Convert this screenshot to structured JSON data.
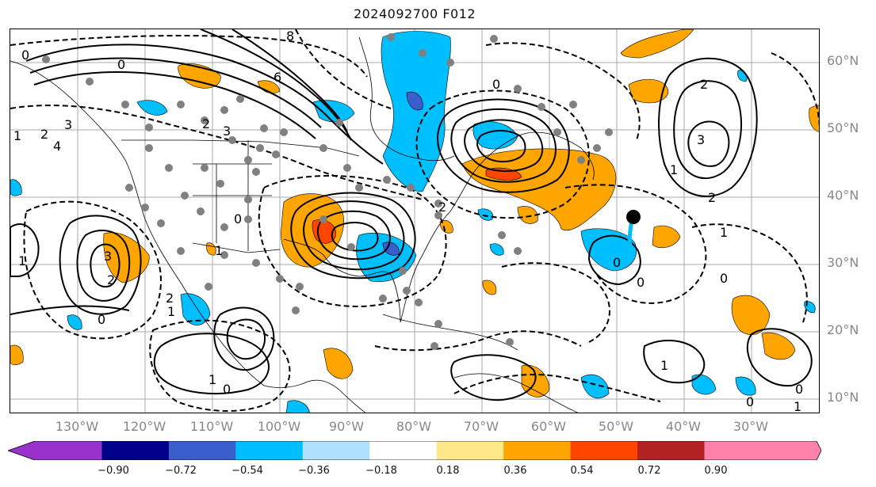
{
  "title": "2024092700 F012",
  "lat_labels": [
    "60°N",
    "50°N",
    "40°N",
    "30°N",
    "20°N",
    "10°N"
  ],
  "lon_labels": [
    "130°W",
    "120°W",
    "110°W",
    "100°W",
    "90°W",
    "80°W",
    "70°W",
    "60°W",
    "50°W",
    "40°W",
    "30°W"
  ],
  "colorbar": {
    "ticks": [
      "−0.90",
      "−0.72",
      "−0.54",
      "−0.36",
      "−0.18",
      "0.18",
      "0.36",
      "0.54",
      "0.72",
      "0.90"
    ],
    "colors": [
      "#9932cc",
      "#00008b",
      "#3a5fcd",
      "#00bfff",
      "#b0e2ff",
      "#ffffff",
      "#ffe88a",
      "#ffa500",
      "#ff4500",
      "#b22222",
      "#ff82ab"
    ]
  },
  "colors": {
    "positive_fill": "#ffa500",
    "positive_strong": "#ff4500",
    "negative_fill": "#00bfff",
    "negative_strong": "#3a5fcd",
    "grid": "#aaaaaa",
    "contour": "#000000",
    "dots": "#808080"
  },
  "contour_labels": [
    "0",
    "0",
    "1",
    "2",
    "3",
    "4",
    "6",
    "8",
    "2",
    "3",
    "0",
    "1",
    "2",
    "3",
    "1",
    "0",
    "1",
    "0",
    "2",
    "1",
    "0",
    "2",
    "3",
    "1",
    "0",
    "2",
    "1",
    "0",
    "1",
    "0",
    "1",
    "2",
    "0",
    "0"
  ]
}
